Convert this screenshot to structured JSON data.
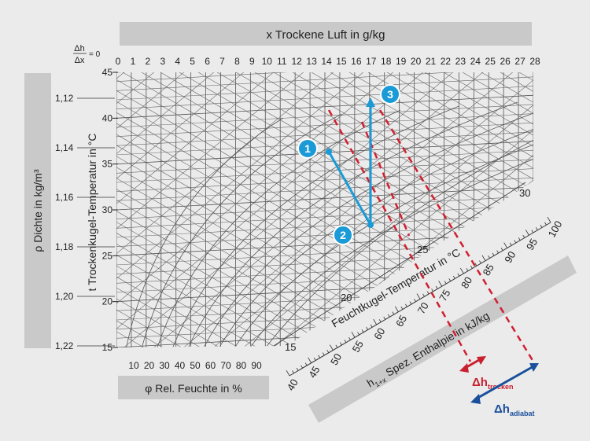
{
  "chart_data": {
    "type": "psychrometric",
    "x_axis": {
      "label": "x Trockene Luft in g/kg",
      "ticks": [
        0,
        1,
        2,
        3,
        4,
        5,
        6,
        7,
        8,
        9,
        10,
        11,
        12,
        13,
        14,
        15,
        16,
        17,
        18,
        19,
        20,
        21,
        22,
        23,
        24,
        25,
        26,
        27,
        28
      ],
      "range": [
        0,
        28
      ]
    },
    "corner_label": {
      "numerator": "Δh",
      "denominator": "Δx",
      "suffix": "= 0"
    },
    "temperature_axis": {
      "label": "t Trockenkugel-Temperatur in °C",
      "ticks": [
        15,
        20,
        25,
        30,
        35,
        40,
        45
      ],
      "range": [
        15,
        45
      ]
    },
    "density_axis": {
      "label": "ρ Dichte in kg/m³",
      "ticks": [
        "1,12",
        "1,14",
        "1,16",
        "1,18",
        "1,20",
        "1,22"
      ]
    },
    "humidity_axis": {
      "label": "φ Rel. Feuchte in %",
      "ticks": [
        10,
        20,
        30,
        40,
        50,
        60,
        70,
        80,
        90
      ]
    },
    "wet_bulb_axis": {
      "label": "Feuchtkugel-Temperatur in °C",
      "ticks": [
        15,
        20,
        25,
        30
      ]
    },
    "enthalpy_axis": {
      "label_prefix": "h",
      "label_sub": "1+x",
      "label_main": "Spez. Enthalpie in kJ/kg",
      "ticks": [
        40,
        45,
        50,
        55,
        60,
        65,
        70,
        75,
        80,
        85,
        90,
        95,
        100
      ]
    },
    "points": [
      {
        "label": "1",
        "x_g_kg": 14.2,
        "t_c": 36.3
      },
      {
        "label": "2",
        "x_g_kg": 17.0,
        "t_c": 28.6
      },
      {
        "label": "3",
        "x_g_kg": 17.0,
        "t_c": 42.0
      }
    ],
    "dimensions": [
      {
        "main": "Δh",
        "sub": "trocken",
        "color": "#c8202f"
      },
      {
        "main": "Δh",
        "sub": "adiabat",
        "color": "#1a4f9c"
      }
    ],
    "colors": {
      "process": "#1a9ad6",
      "projection": "#d02030",
      "grid": "#555555",
      "band": "#c9c9c9"
    }
  }
}
